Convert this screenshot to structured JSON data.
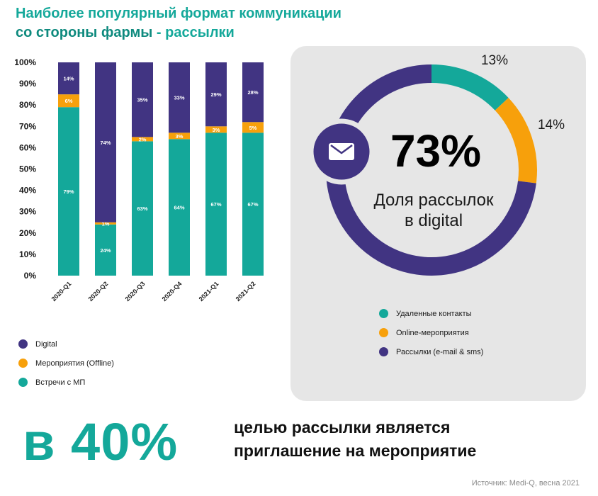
{
  "title": {
    "line1": "Наиболее популярный формат коммуникации",
    "line2_bold": "со стороны фармы",
    "line2_rest": " - рассылки"
  },
  "colors": {
    "digital": "#413482",
    "offline": "#f7a00b",
    "meetings": "#14a89a",
    "panel": "#e6e6e6",
    "accent": "#14a89a"
  },
  "chart_data": [
    {
      "type": "bar",
      "stacked": true,
      "categories": [
        "2020-Q1",
        "2020-Q2",
        "2020-Q3",
        "2020-Q4",
        "2021-Q1",
        "2021-Q2"
      ],
      "series": [
        {
          "name": "Встречи с МП",
          "values": [
            79,
            24,
            63,
            64,
            67,
            67
          ],
          "labels": [
            "79%",
            "24%",
            "63%",
            "64%",
            "67%",
            "67%"
          ]
        },
        {
          "name": "Мероприятия (Offline)",
          "values": [
            6,
            1,
            2,
            3,
            3,
            5
          ],
          "labels": [
            "6%",
            "1%",
            "2%",
            "3%",
            "3%",
            "5%"
          ]
        },
        {
          "name": "Digital",
          "values": [
            14,
            74,
            35,
            33,
            29,
            28
          ],
          "labels": [
            "14%",
            "74%",
            "35%",
            "33%",
            "29%",
            "28%"
          ]
        }
      ],
      "ylim": [
        0,
        100
      ],
      "yticks": [
        "0%",
        "10%",
        "20%",
        "30%",
        "40%",
        "50%",
        "60%",
        "70%",
        "80%",
        "90%",
        "100%"
      ],
      "legend": [
        "Digital",
        "Мероприятия (Offline)",
        "Встречи с МП"
      ],
      "legend_position": "bottom-left"
    },
    {
      "type": "pie",
      "donut": true,
      "slices": [
        {
          "name": "Удаленные контакты",
          "value": 13,
          "label": "13%"
        },
        {
          "name": "Online-мероприятия",
          "value": 14,
          "label": "14%"
        },
        {
          "name": "Рассылки (e-mail & sms)",
          "value": 73,
          "label": "73%"
        }
      ],
      "center_value": "73%",
      "center_caption_line1": "Доля рассылок",
      "center_caption_line2": "в digital",
      "legend": [
        "Удаленные контакты",
        "Online-мероприятия",
        "Рассылки (e-mail & sms)"
      ],
      "legend_position": "bottom"
    }
  ],
  "bottom": {
    "big_value": "в 40%",
    "text_line1": "целью рассылки является",
    "text_line2": "приглашение на мероприятие"
  },
  "source": "Источник: Medi-Q, весна 2021",
  "icons": {
    "center_icon": "envelope-icon"
  }
}
